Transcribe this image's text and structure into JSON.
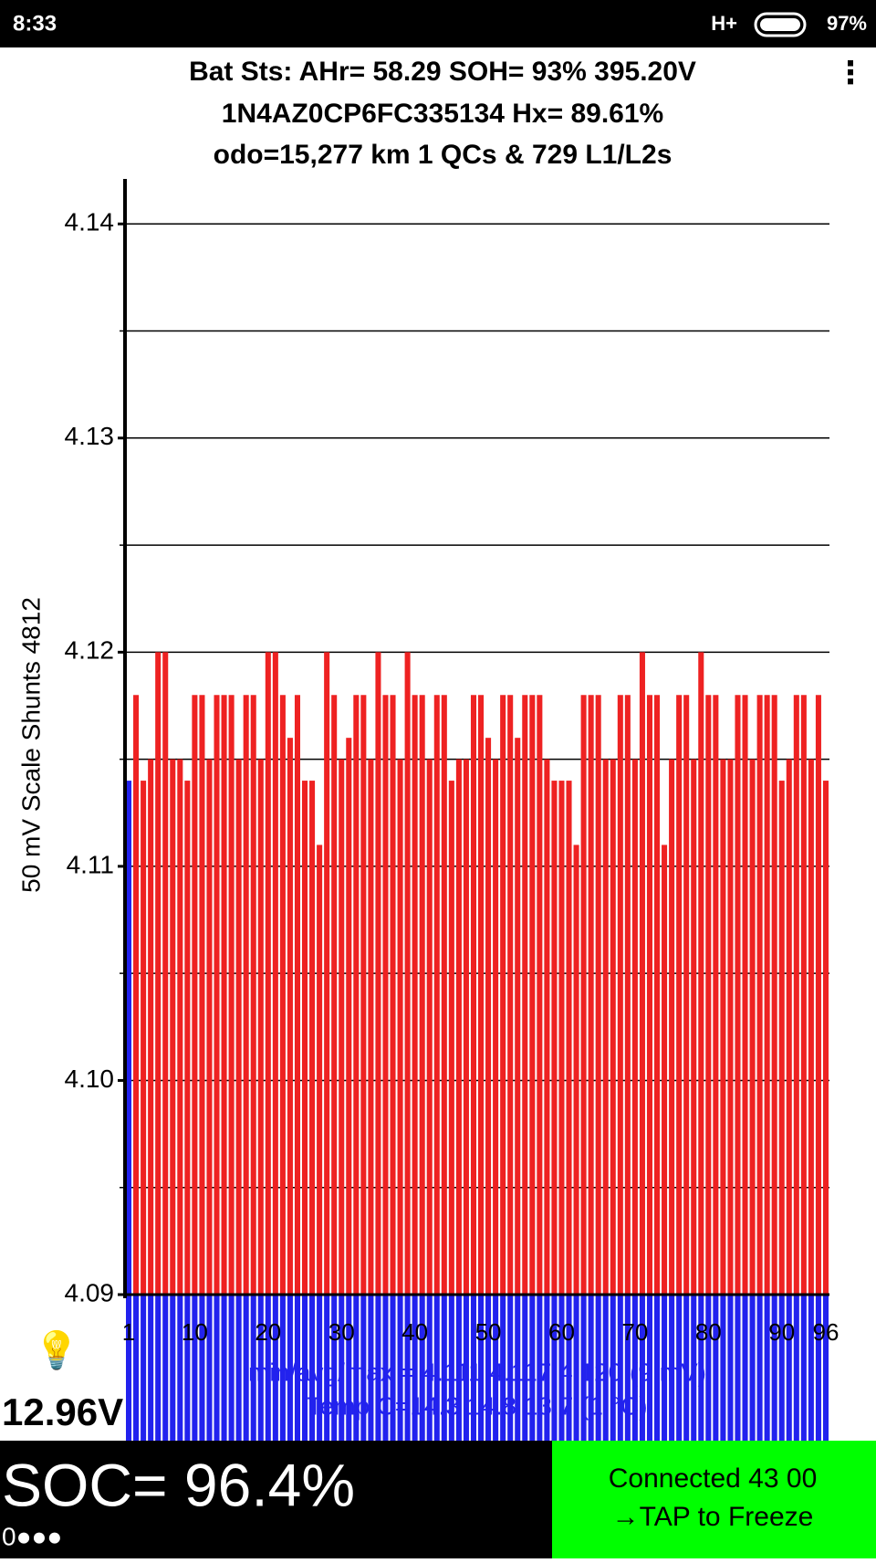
{
  "status_bar": {
    "time": "8:33",
    "network": "H+",
    "battery": "97%"
  },
  "header": {
    "line1": "Bat Sts: AHr= 58.29 SOH= 93% 395.20V",
    "line2": "1N4AZ0CP6FC335134   Hx= 89.61%",
    "line3": "odo=15,277 km  1 QCs  &  729 L1/L2s",
    "menu": "⋮"
  },
  "chart_data": {
    "type": "bar",
    "y_label": "50 mV Scale   Shunts 4812",
    "categories": [
      "1",
      null,
      null,
      null,
      null,
      null,
      null,
      null,
      null,
      "10",
      null,
      null,
      null,
      null,
      null,
      null,
      null,
      null,
      null,
      "20",
      null,
      null,
      null,
      null,
      null,
      null,
      null,
      null,
      null,
      "30",
      null,
      null,
      null,
      null,
      null,
      null,
      null,
      null,
      null,
      "40",
      null,
      null,
      null,
      null,
      null,
      null,
      null,
      null,
      null,
      "50",
      null,
      null,
      null,
      null,
      null,
      null,
      null,
      null,
      null,
      "60",
      null,
      null,
      null,
      null,
      null,
      null,
      null,
      null,
      null,
      "70",
      null,
      null,
      null,
      null,
      null,
      null,
      null,
      null,
      null,
      "80",
      null,
      null,
      null,
      null,
      null,
      null,
      null,
      null,
      null,
      "90",
      null,
      null,
      null,
      null,
      null,
      "96"
    ],
    "values": [
      4.114,
      4.118,
      4.114,
      4.115,
      4.12,
      4.12,
      4.115,
      4.115,
      4.114,
      4.118,
      4.118,
      4.115,
      4.118,
      4.118,
      4.118,
      4.115,
      4.118,
      4.118,
      4.115,
      4.12,
      4.12,
      4.118,
      4.116,
      4.118,
      4.114,
      4.114,
      4.111,
      4.12,
      4.118,
      4.115,
      4.116,
      4.118,
      4.118,
      4.115,
      4.12,
      4.118,
      4.118,
      4.115,
      4.12,
      4.118,
      4.118,
      4.115,
      4.118,
      4.118,
      4.114,
      4.115,
      4.115,
      4.118,
      4.118,
      4.116,
      4.115,
      4.118,
      4.118,
      4.116,
      4.118,
      4.118,
      4.118,
      4.115,
      4.114,
      4.114,
      4.114,
      4.111,
      4.118,
      4.118,
      4.118,
      4.115,
      4.115,
      4.118,
      4.118,
      4.115,
      4.12,
      4.118,
      4.118,
      4.111,
      4.115,
      4.118,
      4.118,
      4.115,
      4.12,
      4.118,
      4.118,
      4.115,
      4.115,
      4.118,
      4.118,
      4.115,
      4.118,
      4.118,
      4.118,
      4.114,
      4.115,
      4.118,
      4.118,
      4.115,
      4.118,
      4.114
    ],
    "color": "#ee2222",
    "highlight": {
      "index": 0,
      "color": "#2222ee"
    },
    "shunt_color": "#2222ee",
    "ylim": [
      4.09,
      4.1421
    ],
    "yticks": [
      4.09,
      {
        "value": 4.1,
        "label": "4.10"
      },
      4.11,
      4.12,
      4.13,
      4.14
    ],
    "yminor": [
      4.095,
      4.105,
      4.115,
      4.125,
      4.135
    ],
    "grid": true,
    "stats": "min/avg/max = 4.111 4.117 4.120  (9 mV)",
    "temps": "Temp C=14.3  14.8  13.7  (1 °C)"
  },
  "footer": {
    "aux_voltage": "12.96V",
    "soc": "SOC= 96.4%",
    "dots": "0●●●",
    "status1": "Connected 43 00",
    "status2": "→TAP to Freeze"
  }
}
